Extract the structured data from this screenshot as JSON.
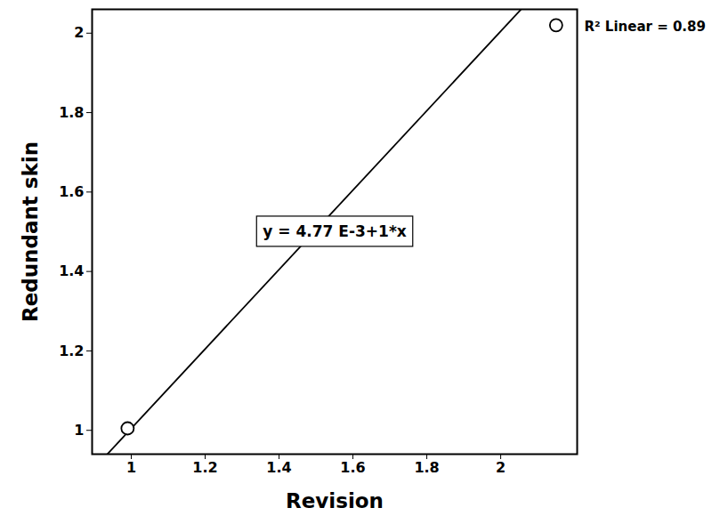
{
  "chart_data": {
    "type": "scatter",
    "xlabel": "Revision",
    "ylabel": "Redundant skin",
    "x": [
      0.99,
      2.15
    ],
    "values": [
      1.005,
      2.02
    ],
    "color": "#000000",
    "marker": "circle",
    "fit": {
      "intercept": 0.00477,
      "slope": 1,
      "line_style": "solid"
    },
    "annotations": [
      "y = 4.77 E-3+1*x",
      "R² Linear = 0.89"
    ],
    "xlim": [
      0.894,
      2.207
    ],
    "ylim": [
      0.94,
      2.06
    ],
    "xticks": [
      1,
      1.2,
      1.4,
      1.6,
      1.8,
      2
    ],
    "yticks": [
      1,
      1.2,
      1.4,
      1.6,
      1.8,
      2
    ],
    "grid": false
  }
}
